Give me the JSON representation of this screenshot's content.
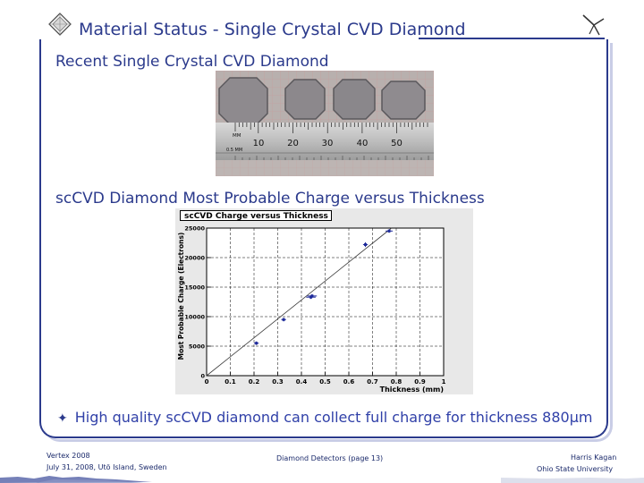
{
  "slide": {
    "title": "Material Status - Single Crystal CVD Diamond",
    "section1_heading": "Recent Single Crystal CVD Diamond",
    "section2_heading": "scCVD Diamond Most Probable Charge versus Thickness",
    "bullet": "High quality scCVD diamond can collect full charge for thickness 880μm"
  },
  "ruler": {
    "unit_label": "MM",
    "sub_label": "0.5 MM",
    "tick_labels": [
      "10",
      "20",
      "30",
      "40",
      "50"
    ]
  },
  "footer": {
    "conference": "Vertex 2008",
    "date_place": "July 31, 2008, Utö Island, Sweden",
    "talk": "Diamond Detectors  (page 13)",
    "author": "Harris Kagan",
    "affiliation": "Ohio State University"
  },
  "colors": {
    "accent": "#2b3a8c",
    "marker": "#1e2a9a",
    "fit_line": "#3a3a3a"
  },
  "chart_data": {
    "type": "scatter",
    "title": "scCVD Charge versus Thickness",
    "xlabel": "Thickness (mm)",
    "ylabel": "Most Probable Charge (Electrons)",
    "xlim": [
      0,
      1
    ],
    "ylim": [
      0,
      25000
    ],
    "x_ticks": [
      0,
      0.1,
      0.2,
      0.3,
      0.4,
      0.5,
      0.6,
      0.7,
      0.8,
      0.9,
      1
    ],
    "x_tick_labels": [
      "0",
      "0.1",
      "0.2",
      "0.3",
      "0.4",
      "0.5",
      "0.6",
      "0.7",
      "0.8",
      "0.9",
      "1"
    ],
    "y_ticks": [
      0,
      5000,
      10000,
      15000,
      20000,
      25000
    ],
    "y_tick_labels": [
      "0",
      "5000",
      "10000",
      "15000",
      "20000",
      "25000"
    ],
    "grid": true,
    "points": [
      {
        "x": 0.21,
        "y": 5500,
        "xerr": 0.01,
        "yerr": 300
      },
      {
        "x": 0.325,
        "y": 9500,
        "xerr": 0.01,
        "yerr": 300
      },
      {
        "x": 0.44,
        "y": 13300,
        "xerr": 0.02,
        "yerr": 300
      },
      {
        "x": 0.445,
        "y": 13500,
        "xerr": 0.02,
        "yerr": 300
      },
      {
        "x": 0.67,
        "y": 22200,
        "xerr": 0.01,
        "yerr": 400
      },
      {
        "x": 0.77,
        "y": 24500,
        "xerr": 0.015,
        "yerr": 300
      }
    ],
    "fit": {
      "x": [
        0,
        0.78
      ],
      "y": [
        0,
        25000
      ]
    }
  }
}
